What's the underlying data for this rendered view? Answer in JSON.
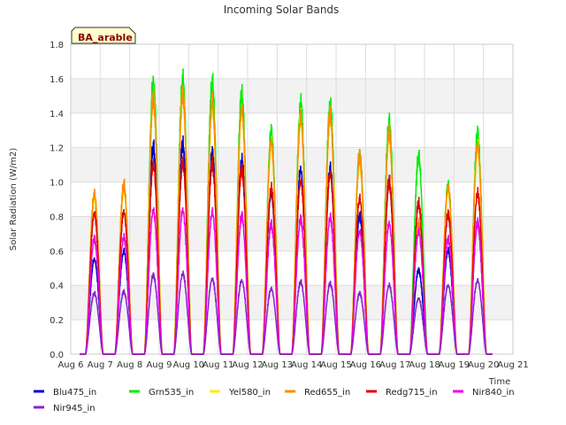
{
  "chart_data": {
    "type": "line",
    "title": "Incoming Solar Bands",
    "xlabel": "Time",
    "ylabel": "Solar Radiation (W/m2)",
    "badge": "BA_arable",
    "x_ticks": [
      "Aug 6",
      "Aug 7",
      "Aug 8",
      "Aug 9",
      "Aug 10",
      "Aug 11",
      "Aug 12",
      "Aug 13",
      "Aug 14",
      "Aug 15",
      "Aug 16",
      "Aug 17",
      "Aug 18",
      "Aug 19",
      "Aug 20",
      "Aug 21"
    ],
    "xlim": [
      6,
      21
    ],
    "y_ticks": [
      "0.0",
      "0.2",
      "0.4",
      "0.6",
      "0.8",
      "1.0",
      "1.2",
      "1.4",
      "1.6",
      "1.8"
    ],
    "ylim": [
      0,
      1.8
    ],
    "grid": true,
    "legend_position": "bottom",
    "data_start_day": 6.3,
    "data_end_day": 20.3,
    "day_centers": [
      7.8,
      8.8,
      9.8,
      10.8,
      11.8,
      12.8,
      13.8,
      14.8,
      15.8,
      16.8,
      17.8,
      18.8,
      19.8,
      20.8
    ],
    "series": [
      {
        "name": "Blu475_in",
        "color": "#0000cc",
        "peaks": [
          0.58,
          0.63,
          1.26,
          1.28,
          1.22,
          1.18,
          0.98,
          1.13,
          1.14,
          0.84,
          1.05,
          0.51,
          0.63,
          0.8
        ]
      },
      {
        "name": "Grn535_in",
        "color": "#00ee00",
        "peaks": [
          0.95,
          1.02,
          1.67,
          1.69,
          1.65,
          1.58,
          1.35,
          1.53,
          1.54,
          1.23,
          1.43,
          1.2,
          1.02,
          1.34
        ]
      },
      {
        "name": "Yel580_in",
        "color": "#ffee00",
        "peaks": [
          0.96,
          1.01,
          1.55,
          1.6,
          1.5,
          1.48,
          1.28,
          1.44,
          1.45,
          1.18,
          1.33,
          0.8,
          1.0,
          1.26
        ]
      },
      {
        "name": "Red655_in",
        "color": "#ff8c00",
        "peaks": [
          0.98,
          1.03,
          1.56,
          1.58,
          1.54,
          1.5,
          1.3,
          1.45,
          1.46,
          1.2,
          1.35,
          0.8,
          1.02,
          1.28
        ]
      },
      {
        "name": "Redg715_in",
        "color": "#dd0000",
        "peaks": [
          0.86,
          0.87,
          1.16,
          1.17,
          1.16,
          1.12,
          1.01,
          1.06,
          1.1,
          0.95,
          1.05,
          0.92,
          0.85,
          0.98
        ]
      },
      {
        "name": "Nir840_in",
        "color": "#ee00ee",
        "peaks": [
          0.7,
          0.71,
          0.88,
          0.88,
          0.87,
          0.84,
          0.79,
          0.82,
          0.83,
          0.75,
          0.8,
          0.75,
          0.7,
          0.8
        ]
      },
      {
        "name": "Nir945_in",
        "color": "#8822cc",
        "peaks": [
          0.37,
          0.38,
          0.48,
          0.49,
          0.46,
          0.45,
          0.4,
          0.44,
          0.43,
          0.37,
          0.42,
          0.34,
          0.42,
          0.45
        ]
      }
    ]
  }
}
